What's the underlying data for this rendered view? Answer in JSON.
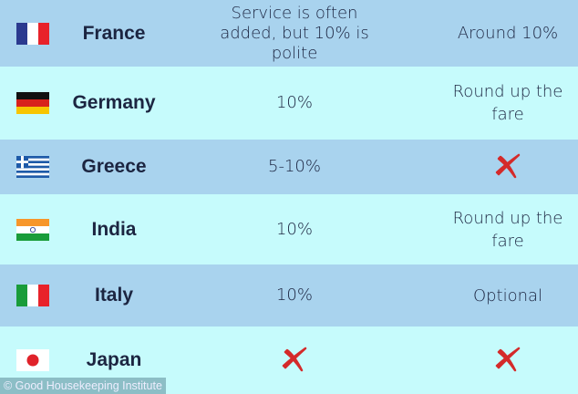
{
  "rows": [
    {
      "country": "France",
      "flag": "france-flag",
      "tip": "Service is often added, but 10% is polite",
      "taxi": "Around 10%"
    },
    {
      "country": "Germany",
      "flag": "germany-flag",
      "tip": "10%",
      "taxi": "Round up the fare"
    },
    {
      "country": "Greece",
      "flag": "greece-flag",
      "tip": "5-10%",
      "taxi": null
    },
    {
      "country": "India",
      "flag": "india-flag",
      "tip": "10%",
      "taxi": "Round up the fare"
    },
    {
      "country": "Italy",
      "flag": "italy-flag",
      "tip": "10%",
      "taxi": "Optional"
    },
    {
      "country": "Japan",
      "flag": "japan-flag",
      "tip": null,
      "taxi": null
    }
  ],
  "credit": "© Good Housekeeping Institute",
  "colors": {
    "row_dark": "#a9d3ee",
    "row_light": "#c6fbfc",
    "text": "#1c2541",
    "cross": "#d42a2a"
  }
}
